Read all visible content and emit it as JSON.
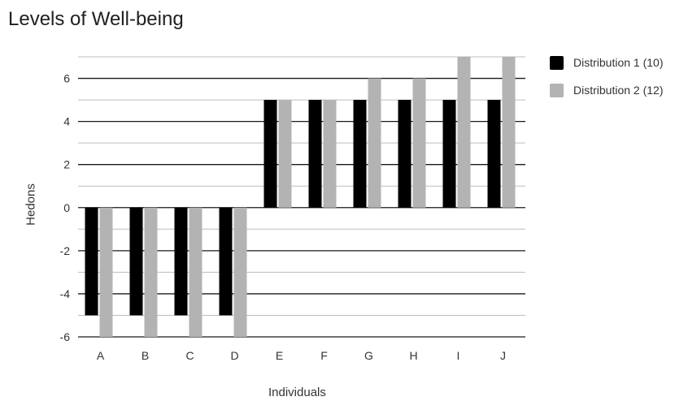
{
  "chart_data": {
    "type": "bar",
    "title": "Levels of Well-being",
    "xlabel": "Individuals",
    "ylabel": "Hedons",
    "categories": [
      "A",
      "B",
      "C",
      "D",
      "E",
      "F",
      "G",
      "H",
      "I",
      "J"
    ],
    "series": [
      {
        "name": "Distribution 1 (10)",
        "color": "#000000",
        "values": [
          -5,
          -5,
          -5,
          -5,
          5,
          5,
          5,
          5,
          5,
          5
        ]
      },
      {
        "name": "Distribution 2 (12)",
        "color": "#b3b3b3",
        "values": [
          -6,
          -6,
          -6,
          -6,
          5,
          5,
          6,
          6,
          7,
          7
        ]
      }
    ],
    "ylim": [
      -6,
      7
    ],
    "yticks": [
      "-6",
      "-4",
      "-2",
      "0",
      "2",
      "4",
      "6"
    ],
    "grid": true,
    "legend": "top-right"
  }
}
